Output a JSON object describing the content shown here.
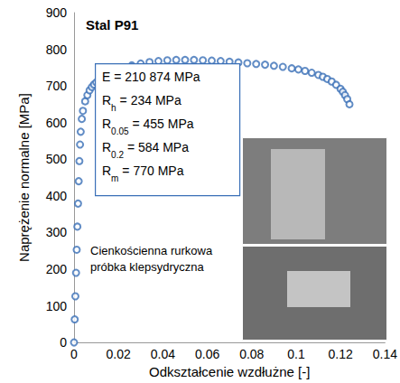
{
  "chart_data": {
    "type": "scatter",
    "title": "Stal P91",
    "x_label": "Odkształcenie wzdłużne [-]",
    "y_label": "Naprężenie normalne [MPa]",
    "series": [
      {
        "name": "Stal P91",
        "color": "#3a6fb7",
        "marker": "open_circle",
        "x": [
          0,
          0.0003,
          0.0006,
          0.0009,
          0.0012,
          0.0015,
          0.0018,
          0.0021,
          0.0024,
          0.0027,
          0.003,
          0.0035,
          0.004,
          0.005,
          0.006,
          0.007,
          0.008,
          0.009,
          0.01,
          0.012,
          0.014,
          0.016,
          0.018,
          0.02,
          0.023,
          0.026,
          0.03,
          0.034,
          0.038,
          0.042,
          0.046,
          0.05,
          0.054,
          0.058,
          0.062,
          0.066,
          0.07,
          0.074,
          0.078,
          0.082,
          0.086,
          0.09,
          0.094,
          0.098,
          0.101,
          0.104,
          0.107,
          0.11,
          0.112,
          0.114,
          0.116,
          0.118,
          0.12,
          0.121,
          0.122,
          0.123,
          0.124
        ],
        "values": [
          0,
          63,
          126,
          190,
          253,
          316,
          379,
          440,
          495,
          540,
          575,
          610,
          632,
          658,
          675,
          688,
          697,
          704,
          710,
          720,
          728,
          735,
          740,
          745,
          751,
          756,
          761,
          765,
          768,
          770,
          771,
          771,
          771,
          770,
          769,
          768,
          766,
          764,
          762,
          760,
          758,
          755,
          752,
          748,
          745,
          741,
          736,
          730,
          725,
          719,
          712,
          703,
          692,
          684,
          675,
          664,
          650
        ]
      }
    ],
    "xlim": [
      0,
      0.14
    ],
    "xticks": [
      0,
      0.02,
      0.04,
      0.06,
      0.08,
      0.1,
      0.12,
      0.14
    ],
    "ylim": [
      0,
      900
    ],
    "yticks": [
      0,
      100,
      200,
      300,
      400,
      500,
      600,
      700,
      800,
      900
    ],
    "grid": false,
    "annotations": {
      "properties": [
        {
          "main": "E",
          "sub": "",
          "rest": " = 210 874 MPa"
        },
        {
          "main": "R",
          "sub": "h",
          "rest": " = 234 MPa"
        },
        {
          "main": "R",
          "sub": "0.05",
          "rest": " = 455 MPa"
        },
        {
          "main": "R",
          "sub": "0.2",
          "rest": " = 584 MPa"
        },
        {
          "main": "R",
          "sub": "m",
          "rest": " = 770 MPa"
        }
      ],
      "specimen": "Cienkościenna rurkowa próbka klepsydryczna"
    }
  }
}
